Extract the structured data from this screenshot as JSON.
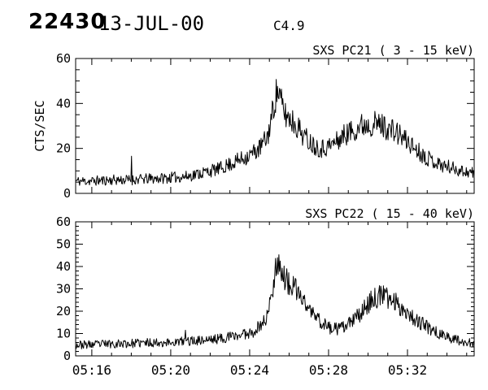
{
  "header": {
    "flare_number": "22430",
    "date": "13-JUL-00",
    "goes_class": "C4.9"
  },
  "colors": {
    "foreground": "#000000",
    "background": "#ffffff"
  },
  "chart_data": [
    {
      "type": "line",
      "title": "SXS PC21  (  3 - 15 keV)",
      "ylabel": "CTS/SEC",
      "ylim": [
        0,
        60
      ],
      "y_major_ticks": [
        0,
        20,
        40,
        60
      ],
      "y_minor_step": 5,
      "x_minutes_range": [
        15.18,
        35.38
      ],
      "x_tick_labels": [
        "05:16",
        "05:20",
        "05:24",
        "05:28",
        "05:32"
      ],
      "x_tick_minutes": [
        16,
        20,
        24,
        28,
        32
      ],
      "x_minor_step_minutes": 1,
      "show_x_labels": false,
      "grid": false,
      "envelope_points": [
        [
          15.2,
          5.5
        ],
        [
          16,
          5.5
        ],
        [
          17,
          6
        ],
        [
          17.9,
          6
        ],
        [
          19,
          6.5
        ],
        [
          20,
          7
        ],
        [
          20.8,
          7.5
        ],
        [
          21.5,
          9
        ],
        [
          22,
          10
        ],
        [
          22.5,
          11
        ],
        [
          23,
          13
        ],
        [
          23.5,
          15
        ],
        [
          24,
          17
        ],
        [
          24.5,
          20
        ],
        [
          24.9,
          25
        ],
        [
          25.1,
          33
        ],
        [
          25.3,
          43
        ],
        [
          25.45,
          46
        ],
        [
          25.6,
          40
        ],
        [
          25.8,
          35
        ],
        [
          26.1,
          33
        ],
        [
          26.4,
          30
        ],
        [
          26.8,
          25
        ],
        [
          27.2,
          22
        ],
        [
          27.6,
          20
        ],
        [
          28,
          21
        ],
        [
          28.4,
          23
        ],
        [
          28.8,
          26
        ],
        [
          29.2,
          28
        ],
        [
          29.6,
          30
        ],
        [
          30,
          31
        ],
        [
          30.4,
          31
        ],
        [
          30.8,
          30
        ],
        [
          31.2,
          28
        ],
        [
          31.6,
          26
        ],
        [
          32,
          23
        ],
        [
          32.4,
          20
        ],
        [
          32.8,
          17
        ],
        [
          33.2,
          15
        ],
        [
          33.6,
          13
        ],
        [
          34,
          12
        ],
        [
          34.4,
          11
        ],
        [
          34.8,
          10
        ],
        [
          35.38,
          9
        ]
      ],
      "spike_points": [
        [
          18.0,
          16.5
        ]
      ],
      "noise": {
        "base": 1.5,
        "scale": 0.14,
        "seed": 11
      }
    },
    {
      "type": "line",
      "title": "SXS PC22  ( 15 - 40 keV)",
      "ylabel": "",
      "ylim": [
        0,
        60
      ],
      "y_major_ticks": [
        0,
        10,
        20,
        30,
        40,
        50,
        60
      ],
      "y_minor_step": 2,
      "x_minutes_range": [
        15.18,
        35.38
      ],
      "x_tick_labels": [
        "05:16",
        "05:20",
        "05:24",
        "05:28",
        "05:32"
      ],
      "x_tick_minutes": [
        16,
        20,
        24,
        28,
        32
      ],
      "x_minor_step_minutes": 1,
      "show_x_labels": true,
      "grid": false,
      "envelope_points": [
        [
          15.2,
          5
        ],
        [
          16,
          5
        ],
        [
          17,
          5.5
        ],
        [
          18,
          5.5
        ],
        [
          19,
          6
        ],
        [
          20,
          6
        ],
        [
          20.7,
          6.5
        ],
        [
          21.5,
          7
        ],
        [
          22.3,
          7.5
        ],
        [
          23,
          8.5
        ],
        [
          23.6,
          9.5
        ],
        [
          24.2,
          11
        ],
        [
          24.6,
          14
        ],
        [
          24.9,
          18
        ],
        [
          25.1,
          26
        ],
        [
          25.3,
          40
        ],
        [
          25.45,
          43
        ],
        [
          25.6,
          38
        ],
        [
          25.8,
          34
        ],
        [
          26.1,
          31
        ],
        [
          26.4,
          29
        ],
        [
          26.7,
          25
        ],
        [
          27,
          21
        ],
        [
          27.4,
          17
        ],
        [
          27.8,
          14
        ],
        [
          28.2,
          12
        ],
        [
          28.6,
          12
        ],
        [
          29,
          14
        ],
        [
          29.4,
          17
        ],
        [
          29.8,
          21
        ],
        [
          30.2,
          25
        ],
        [
          30.6,
          27
        ],
        [
          31,
          26
        ],
        [
          31.4,
          24
        ],
        [
          31.8,
          21
        ],
        [
          32.2,
          18
        ],
        [
          32.6,
          15
        ],
        [
          33,
          13
        ],
        [
          33.4,
          11
        ],
        [
          33.8,
          9
        ],
        [
          34.2,
          8
        ],
        [
          34.6,
          7
        ],
        [
          35,
          6
        ],
        [
          35.38,
          5.5
        ]
      ],
      "spike_points": [
        [
          20.75,
          11.5
        ]
      ],
      "noise": {
        "base": 1.2,
        "scale": 0.14,
        "seed": 23
      }
    }
  ]
}
